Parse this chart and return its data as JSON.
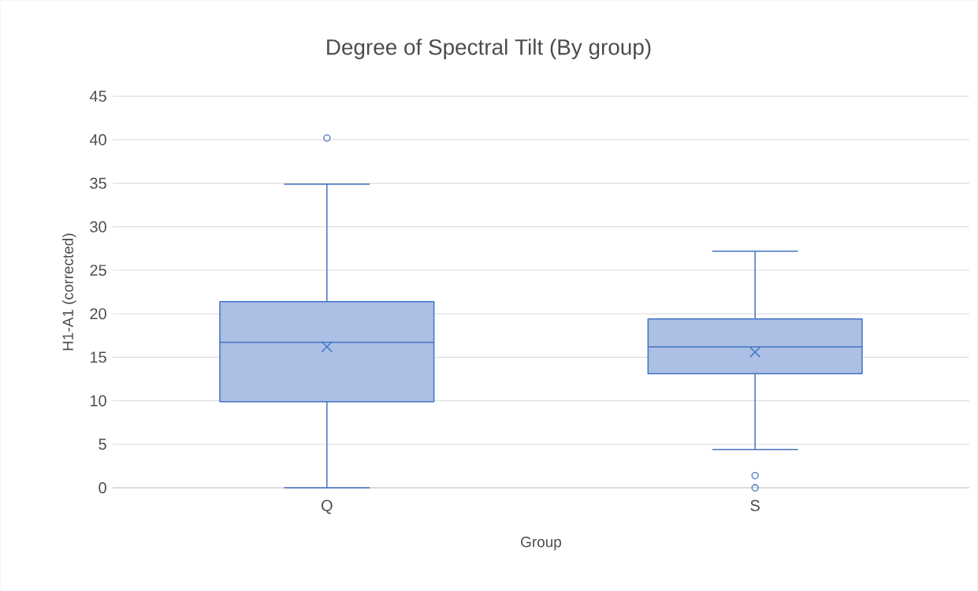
{
  "chart_data": {
    "type": "box",
    "title": "Degree of Spectral Tilt (By group)",
    "xlabel": "Group",
    "ylabel": "H1-A1 (corrected)",
    "categories": [
      "Q",
      "S"
    ],
    "boxes": [
      {
        "low": 0,
        "q1": 9.9,
        "median": 16.7,
        "q3": 21.4,
        "high": 34.9,
        "mean": 16.2,
        "outliers": [
          40.2
        ]
      },
      {
        "low": 4.4,
        "q1": 13.1,
        "median": 16.2,
        "q3": 19.4,
        "high": 27.2,
        "mean": 15.6,
        "outliers": [
          1.4,
          0
        ]
      }
    ],
    "color": "#4472c4",
    "ylim": [
      0,
      45
    ],
    "yticks": [
      0,
      5,
      10,
      15,
      20,
      25,
      30,
      35,
      40,
      45
    ],
    "grid": "y"
  }
}
